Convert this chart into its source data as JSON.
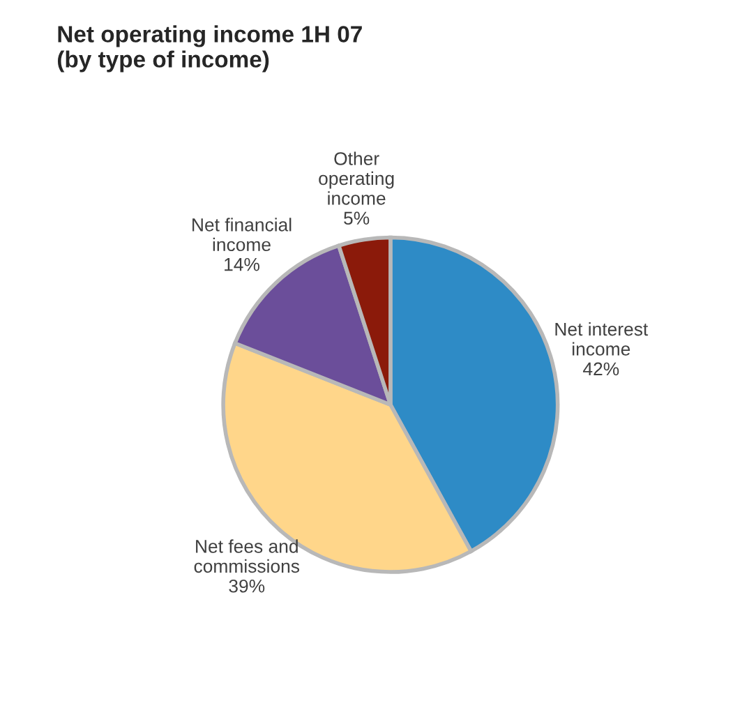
{
  "chart_data": {
    "type": "pie",
    "title": "Net operating income 1H 07\n(by type of income)",
    "categories": [
      "Net interest\nincome",
      "Net fees and\ncommissions",
      "Net financial\nincome",
      "Other\noperating\nincome"
    ],
    "values": [
      42,
      39,
      14,
      5
    ],
    "colors": [
      "#2e8bc6",
      "#ffd68a",
      "#6b4e9a",
      "#8b1a0a"
    ],
    "value_labels": [
      "42%",
      "39%",
      "14%",
      "5%"
    ]
  }
}
